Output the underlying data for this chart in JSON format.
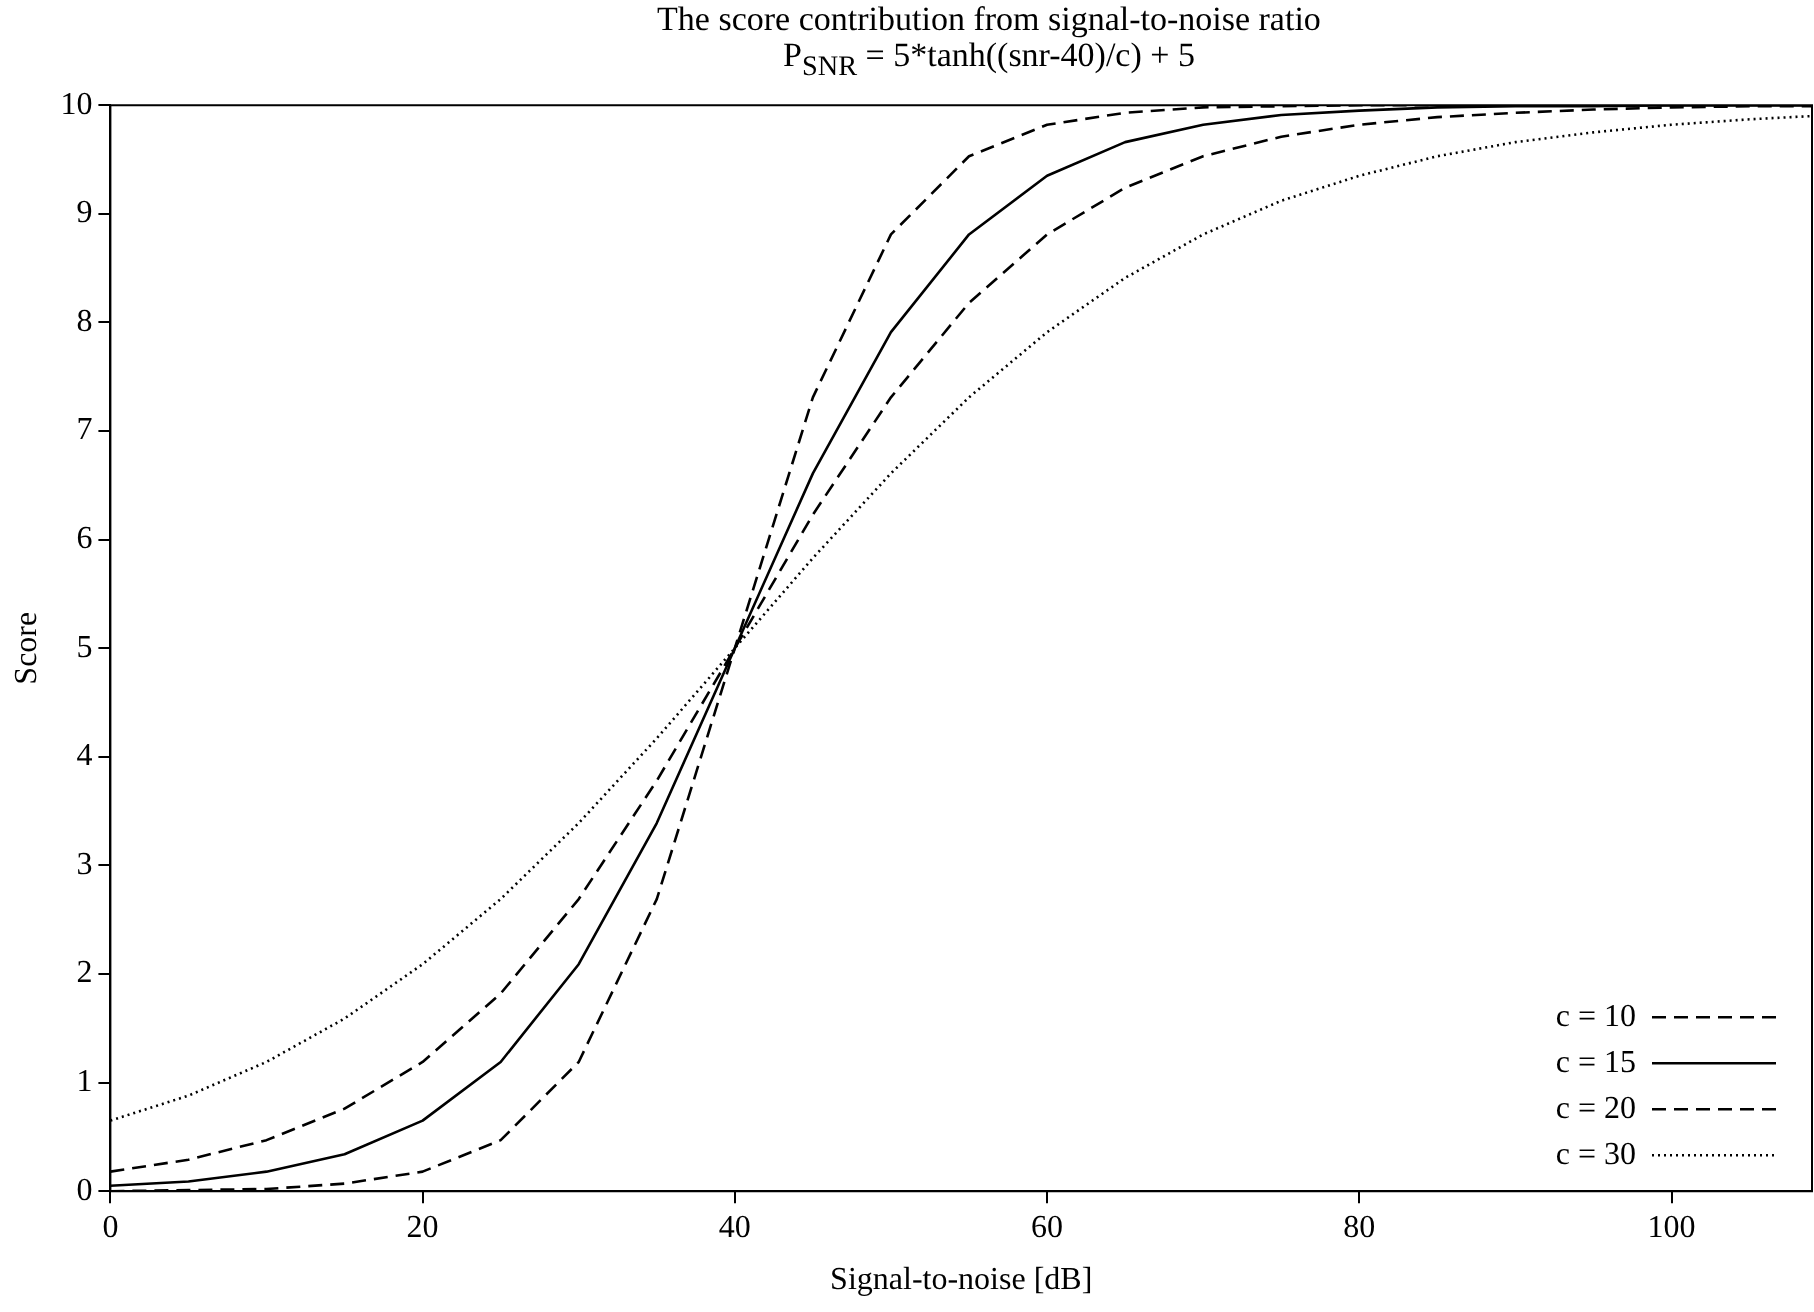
{
  "chart_data": {
    "type": "line",
    "title": "The score contribution from signal-to-noise ratio",
    "subtitle": "P$_{SNR}$ = 5*tanh((snr-40)/c) + 5",
    "xlabel": "Signal-to-noise [dB]",
    "ylabel": "Score",
    "x": [
      0,
      5,
      10,
      15,
      20,
      25,
      30,
      35,
      40,
      45,
      50,
      55,
      60,
      65,
      70,
      75,
      80,
      85,
      90,
      95,
      100,
      105,
      109
    ],
    "series": [
      {
        "name": "c = 10",
        "color": "#000000",
        "line_style": "dashed",
        "values": [
          0.0,
          0.01,
          0.02,
          0.07,
          0.18,
          0.47,
          1.19,
          2.69,
          5.0,
          7.31,
          8.81,
          9.53,
          9.82,
          9.93,
          9.98,
          9.99,
          10.0,
          10.0,
          10.0,
          10.0,
          10.0,
          10.0,
          10.0
        ]
      },
      {
        "name": "c = 15",
        "color": "#000000",
        "line_style": "solid",
        "values": [
          0.05,
          0.09,
          0.18,
          0.34,
          0.65,
          1.19,
          2.09,
          3.39,
          5.0,
          6.61,
          7.91,
          8.81,
          9.35,
          9.66,
          9.82,
          9.91,
          9.95,
          9.98,
          9.99,
          9.99,
          10.0,
          10.0,
          10.0
        ]
      },
      {
        "name": "c = 20",
        "color": "#000000",
        "line_style": "dashed",
        "values": [
          0.18,
          0.29,
          0.47,
          0.76,
          1.19,
          1.82,
          2.69,
          3.78,
          5.0,
          6.23,
          7.31,
          8.18,
          8.81,
          9.24,
          9.53,
          9.71,
          9.82,
          9.89,
          9.93,
          9.96,
          9.98,
          9.99,
          9.99
        ]
      },
      {
        "name": "c = 30",
        "color": "#000000",
        "line_style": "dotted",
        "values": [
          0.65,
          0.88,
          1.19,
          1.59,
          2.09,
          2.69,
          3.39,
          4.17,
          5.0,
          5.83,
          6.61,
          7.31,
          7.91,
          8.41,
          8.81,
          9.12,
          9.35,
          9.53,
          9.66,
          9.75,
          9.82,
          9.87,
          9.9
        ]
      }
    ],
    "xlim": [
      0,
      109
    ],
    "xticks": [
      0,
      20,
      40,
      60,
      80,
      100
    ],
    "ylim": [
      0,
      10
    ],
    "yticks": [
      0,
      1,
      2,
      3,
      4,
      5,
      6,
      7,
      8,
      9,
      10
    ],
    "grid": false,
    "legend": "bottom right"
  }
}
